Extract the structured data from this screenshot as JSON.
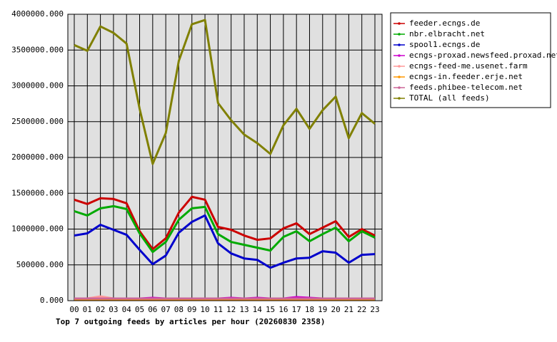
{
  "chart_data": {
    "type": "line",
    "title": "Top 7 outgoing feeds by articles per hour (20260830 2358)",
    "categories": [
      "00",
      "01",
      "02",
      "03",
      "04",
      "05",
      "06",
      "07",
      "08",
      "09",
      "10",
      "11",
      "12",
      "13",
      "14",
      "15",
      "16",
      "17",
      "18",
      "19",
      "20",
      "21",
      "22",
      "23"
    ],
    "ylim": [
      0,
      4000000
    ],
    "yticks": [
      {
        "value": 0,
        "label": "0.000"
      },
      {
        "value": 500000,
        "label": "500000.000"
      },
      {
        "value": 1000000,
        "label": "1000000.000"
      },
      {
        "value": 1500000,
        "label": "1500000.000"
      },
      {
        "value": 2000000,
        "label": "2000000.000"
      },
      {
        "value": 2500000,
        "label": "2500000.000"
      },
      {
        "value": 3000000,
        "label": "3000000.000"
      },
      {
        "value": 3500000,
        "label": "3500000.000"
      },
      {
        "value": 4000000,
        "label": "4000000.000"
      }
    ],
    "grid": true,
    "series": [
      {
        "name": "feeder.ecngs.de",
        "color": "#cc0000",
        "values": [
          1410000,
          1350000,
          1430000,
          1420000,
          1360000,
          970000,
          720000,
          870000,
          1230000,
          1450000,
          1410000,
          1030000,
          990000,
          910000,
          850000,
          870000,
          1010000,
          1080000,
          930000,
          1020000,
          1110000,
          890000,
          1000000,
          910000
        ]
      },
      {
        "name": "nbr.elbracht.net",
        "color": "#00aa00",
        "values": [
          1250000,
          1190000,
          1290000,
          1320000,
          1280000,
          940000,
          680000,
          820000,
          1130000,
          1290000,
          1310000,
          930000,
          820000,
          780000,
          740000,
          700000,
          890000,
          970000,
          830000,
          930000,
          1020000,
          830000,
          970000,
          880000
        ]
      },
      {
        "name": "spool1.ecngs.de",
        "color": "#0000cc",
        "values": [
          910000,
          940000,
          1060000,
          990000,
          920000,
          710000,
          510000,
          630000,
          950000,
          1100000,
          1190000,
          800000,
          660000,
          590000,
          570000,
          460000,
          530000,
          590000,
          600000,
          690000,
          670000,
          530000,
          640000,
          650000
        ]
      },
      {
        "name": "ecngs-proxad.newsfeed.proxad.net",
        "color": "#cc00cc",
        "values": [
          30000,
          30000,
          40000,
          30000,
          30000,
          30000,
          40000,
          30000,
          30000,
          30000,
          20000,
          30000,
          40000,
          30000,
          40000,
          30000,
          30000,
          50000,
          40000,
          30000,
          30000,
          30000,
          20000,
          30000
        ]
      },
      {
        "name": "ecngs-feed-me.usenet.farm",
        "color": "#ff9999",
        "values": [
          30000,
          30000,
          60000,
          30000,
          30000,
          30000,
          30000,
          30000,
          30000,
          30000,
          20000,
          30000,
          30000,
          30000,
          30000,
          30000,
          30000,
          30000,
          30000,
          30000,
          30000,
          30000,
          20000,
          30000
        ]
      },
      {
        "name": "ecngs-in.feeder.erje.net",
        "color": "#ff9900",
        "values": [
          20000,
          20000,
          20000,
          20000,
          20000,
          20000,
          20000,
          20000,
          20000,
          20000,
          20000,
          20000,
          20000,
          20000,
          20000,
          20000,
          20000,
          20000,
          20000,
          20000,
          20000,
          20000,
          20000,
          20000
        ]
      },
      {
        "name": "feeds.phibee-telecom.net",
        "color": "#cc6699",
        "values": [
          30000,
          30000,
          30000,
          30000,
          30000,
          30000,
          30000,
          30000,
          30000,
          30000,
          30000,
          30000,
          30000,
          30000,
          30000,
          30000,
          30000,
          30000,
          30000,
          30000,
          30000,
          30000,
          30000,
          30000
        ]
      },
      {
        "name": "TOTAL (all feeds)",
        "color": "#808000",
        "values": [
          3570000,
          3490000,
          3830000,
          3740000,
          3590000,
          2680000,
          1910000,
          2340000,
          3350000,
          3860000,
          3920000,
          2760000,
          2520000,
          2320000,
          2200000,
          2050000,
          2450000,
          2680000,
          2400000,
          2660000,
          2850000,
          2270000,
          2620000,
          2470000
        ]
      }
    ]
  }
}
